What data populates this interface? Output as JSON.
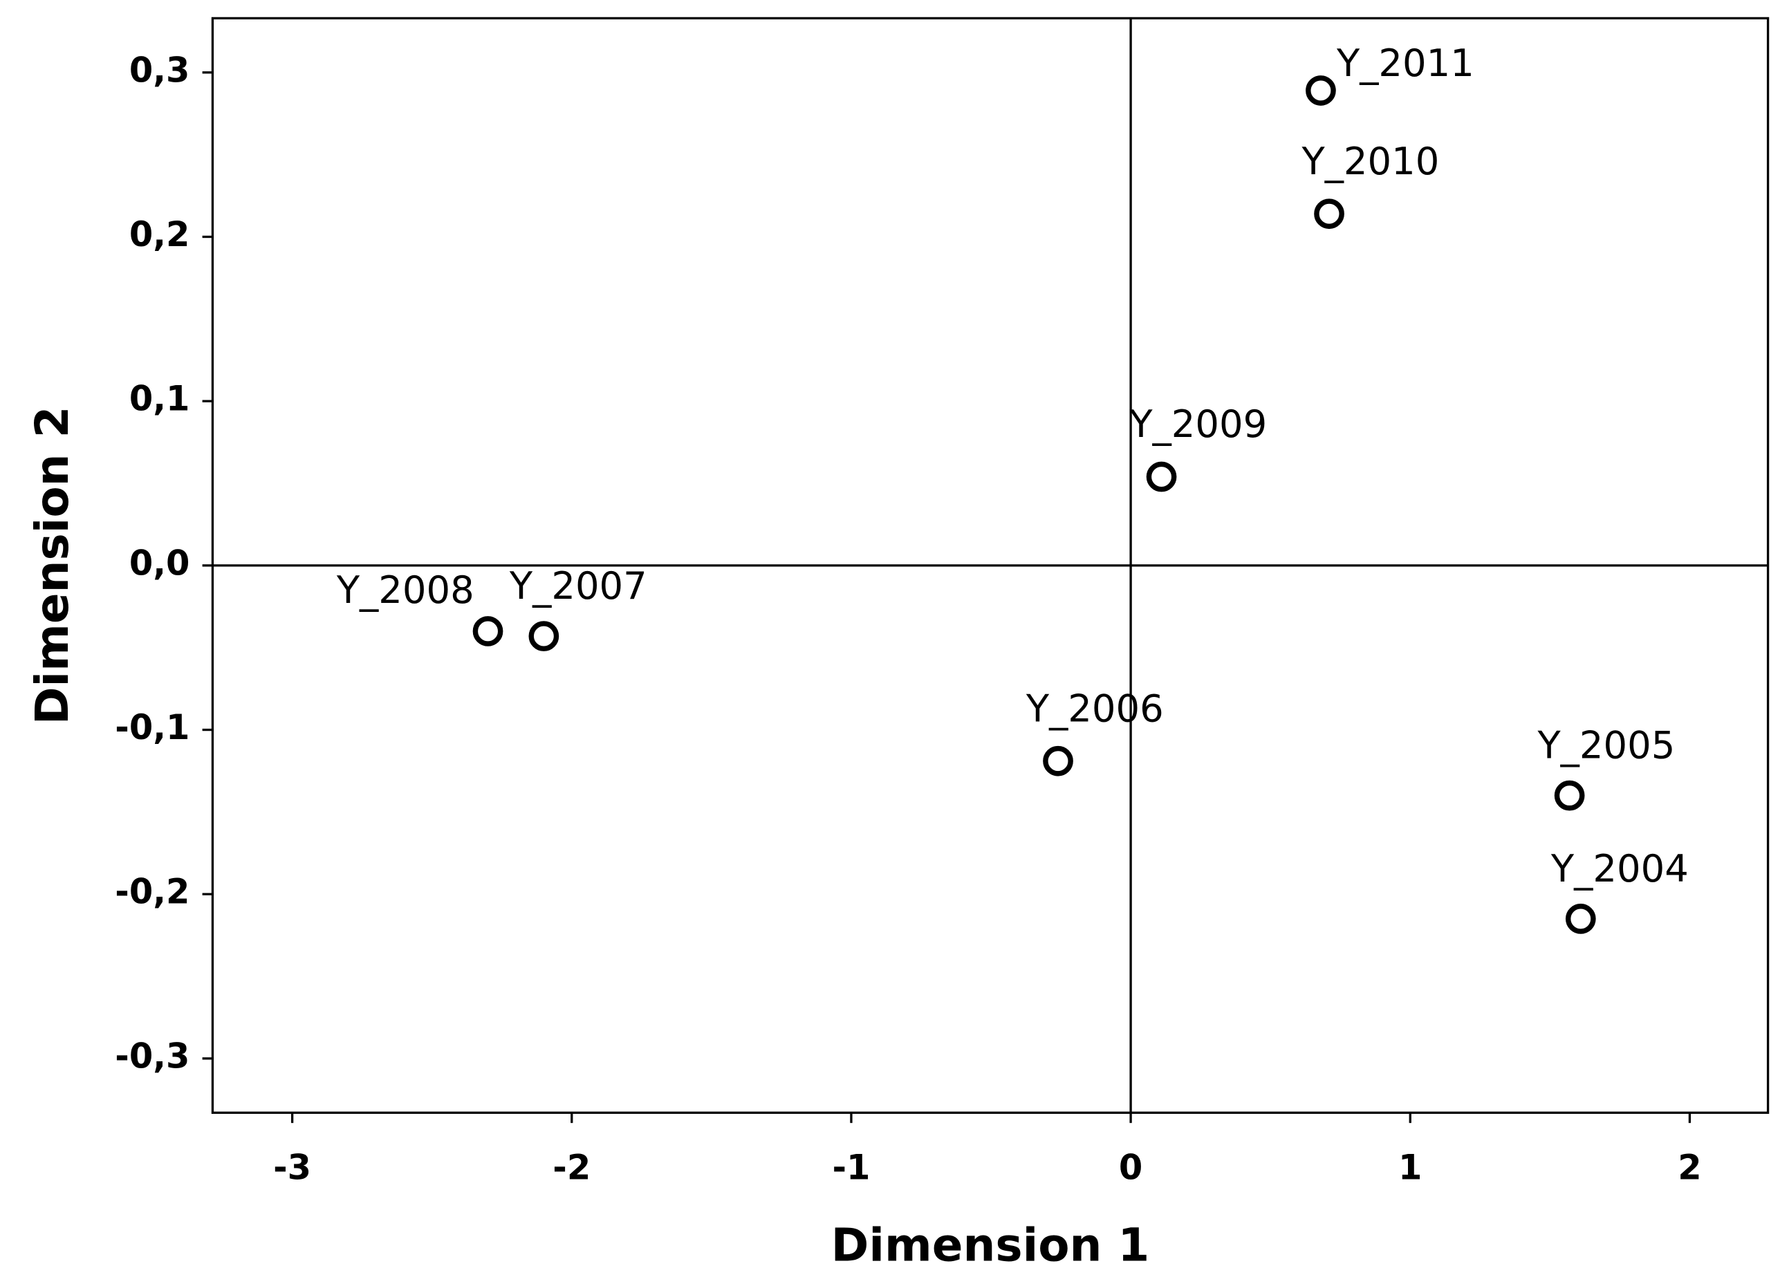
{
  "chart_data": {
    "type": "scatter",
    "x_label": "Dimension 1",
    "y_label": "Dimension 2",
    "x": [
      0.68,
      0.71,
      0.11,
      -2.3,
      -2.1,
      -0.26,
      1.57,
      1.61
    ],
    "values": [
      0.289,
      0.214,
      0.054,
      -0.04,
      -0.043,
      -0.119,
      -0.14,
      -0.215
    ],
    "point_labels": [
      "Y_2011",
      "Y_2010",
      "Y_2009",
      "Y_2008",
      "Y_2007",
      "Y_2006",
      "Y_2005",
      "Y_2004"
    ],
    "xlim": [
      -3.285,
      2.28
    ],
    "ylim": [
      -0.333,
      0.333
    ],
    "xticks": [
      -3,
      -2,
      -1,
      0,
      1,
      2
    ],
    "yticks": [
      {
        "value": -0.3,
        "label": "-0,3"
      },
      {
        "value": -0.2,
        "label": "-0,2"
      },
      {
        "value": -0.1,
        "label": "-0,1"
      },
      {
        "value": 0.0,
        "label": "0,0"
      },
      {
        "value": 0.1,
        "label": "0,1"
      },
      {
        "value": 0.2,
        "label": "0,2"
      },
      {
        "value": 0.3,
        "label": "0,3"
      }
    ],
    "color": "#000000"
  }
}
